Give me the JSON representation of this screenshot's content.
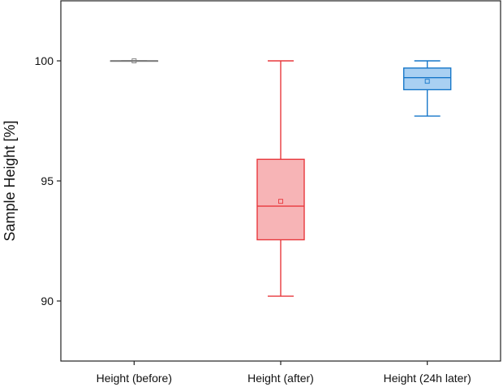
{
  "chart_data": {
    "type": "box",
    "title": "",
    "xlabel": "",
    "ylabel": "Sample Height [%]",
    "ylim": [
      87.5,
      102.5
    ],
    "yticks": [
      90,
      95,
      100
    ],
    "grid": false,
    "legend": "none",
    "categories": [
      "Height (before)",
      "Height (after)",
      "Height (24h later)"
    ],
    "boxes": [
      {
        "category": "Height (before)",
        "min": 100,
        "q1": 100,
        "median": 100,
        "q3": 100,
        "max": 100,
        "mean": 100,
        "color": "#7a7a7a",
        "fill": "#d9d9d9"
      },
      {
        "category": "Height (after)",
        "min": 90.2,
        "q1": 92.55,
        "median": 93.95,
        "q3": 95.9,
        "max": 100,
        "mean": 94.15,
        "color": "#e8383d",
        "fill": "#f7b4b6"
      },
      {
        "category": "Height (24h later)",
        "min": 97.7,
        "q1": 98.8,
        "median": 99.3,
        "q3": 99.7,
        "max": 100,
        "mean": 99.15,
        "color": "#1677c9",
        "fill": "#a9d0f2"
      }
    ]
  }
}
